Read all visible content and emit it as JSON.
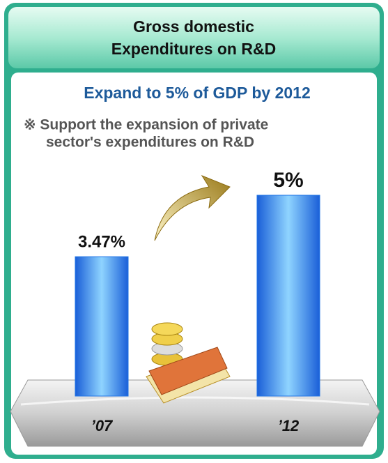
{
  "chart_data": {
    "type": "bar",
    "title": [
      "Gross domestic",
      "Expenditures on R&D"
    ],
    "subtitle": "Expand to 5% of GDP by 2012",
    "note": [
      "※ Support the expansion of private",
      "sector's expenditures on R&D"
    ],
    "categories": [
      "’07",
      "’12"
    ],
    "values": [
      3.47,
      5
    ],
    "value_labels": [
      "3.47%",
      "5%"
    ],
    "color": "#1f74e6"
  }
}
